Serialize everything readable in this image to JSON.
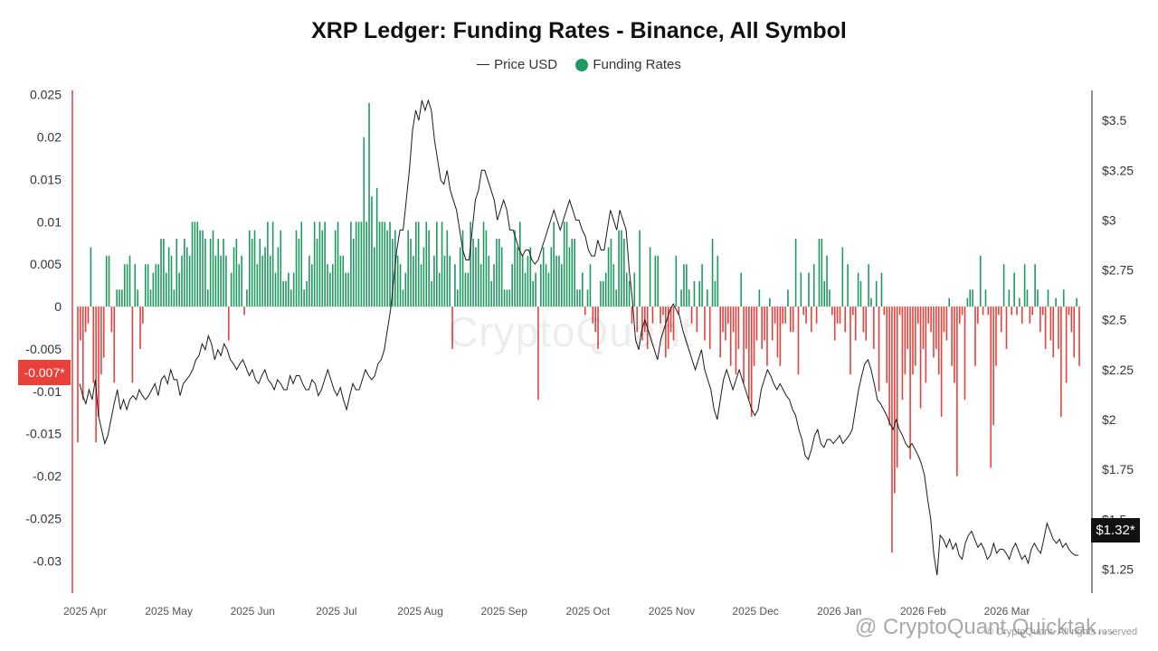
{
  "colors": {
    "positive": "#1e9960",
    "negative": "#e8413b",
    "price": "#1a1a1a",
    "axis": "#e8413b"
  },
  "watermark": "CryptoQuant",
  "credit": "© CryptoQuant. All rights reserved",
  "repost": "@ CryptoQuant Quicktak...",
  "chart_data": {
    "type": "bar",
    "title": "XRP Ledger: Funding Rates - Binance, All Symbol",
    "legend": [
      {
        "label": "Price USD",
        "kind": "line"
      },
      {
        "label": "Funding Rates",
        "kind": "dot"
      }
    ],
    "x_ticks": [
      "2025 Apr",
      "2025 May",
      "2025 Jun",
      "2025 Jul",
      "2025 Aug",
      "2025 Sep",
      "2025 Oct",
      "2025 Nov",
      "2025 Dec",
      "2026 Jan",
      "2026 Feb",
      "2026 Mar"
    ],
    "y_left": {
      "ticks": [
        0.025,
        0.02,
        0.015,
        0.01,
        0.005,
        0,
        -0.005,
        -0.01,
        -0.015,
        -0.02,
        -0.025,
        -0.03
      ],
      "tick_labels": [
        "0.025",
        "0.02",
        "0.015",
        "0.01",
        "0.005",
        "0",
        "-0.005",
        "-0.01",
        "-0.015",
        "-0.02",
        "-0.025",
        "-0.03"
      ],
      "range": [
        -0.0338,
        0.0255
      ]
    },
    "y_right": {
      "ticks": [
        3.5,
        3.25,
        3,
        2.75,
        2.5,
        2.25,
        2,
        1.75,
        1.5,
        1.25
      ],
      "tick_labels": [
        "$3.5",
        "$3.25",
        "$3",
        "$2.75",
        "$2.5",
        "$2.25",
        "$2",
        "$1.75",
        "$1.5",
        "$1.25"
      ],
      "range": [
        1.13,
        3.65
      ]
    },
    "current_funding_label": "-0.007*",
    "current_price_label": "$1.32*",
    "funding_rates": [
      -0.016,
      -0.004,
      -0.011,
      -0.003,
      -0.002,
      0.007,
      -0.009,
      -0.016,
      -0.013,
      -0.008,
      -0.006,
      0.006,
      0.006,
      -0.003,
      -0.009,
      0.002,
      0.002,
      0.002,
      0.005,
      0.005,
      0.006,
      -0.009,
      0.005,
      0.002,
      -0.005,
      -0.002,
      0.005,
      0.005,
      0.002,
      0.004,
      0.005,
      0.005,
      0.008,
      0.008,
      0.004,
      0.007,
      0.006,
      0.002,
      0.008,
      0.004,
      0.006,
      0.008,
      0.007,
      0.006,
      0.01,
      0.01,
      0.01,
      0.009,
      0.009,
      0.008,
      0.002,
      0.008,
      0.009,
      0.006,
      0.008,
      0.006,
      0.008,
      0.006,
      -0.004,
      0.004,
      0.007,
      0.008,
      0.005,
      0.006,
      -0.001,
      0.002,
      0.009,
      0.008,
      0.009,
      0.005,
      0.008,
      0.006,
      0.007,
      0.01,
      0.006,
      0.01,
      0.004,
      0.007,
      0.009,
      0.003,
      0.003,
      0.004,
      0.002,
      0.004,
      0.009,
      0.008,
      0.01,
      0.002,
      0.003,
      0.006,
      0.005,
      0.01,
      0.008,
      0.01,
      0.009,
      0.01,
      0.005,
      0.004,
      0.005,
      0.009,
      0.01,
      0.006,
      0.006,
      0.004,
      0.004,
      0.01,
      0.008,
      0.01,
      0.01,
      0.01,
      0.02,
      0.01,
      0.024,
      0.013,
      0.007,
      0.014,
      0.01,
      0.01,
      0.01,
      0.009,
      0.01,
      0.008,
      0.009,
      0.006,
      0.005,
      0.002,
      0.004,
      0.009,
      0.008,
      0.006,
      0.01,
      0.01,
      0.005,
      0.007,
      0.01,
      0.009,
      0.003,
      0.006,
      0.01,
      0.004,
      0.01,
      0.006,
      0.009,
      0.006,
      -0.005,
      0.005,
      0.002,
      0.007,
      0.009,
      0.004,
      0.004,
      0.01,
      0.008,
      0.007,
      0.008,
      0.005,
      0.01,
      0.009,
      0.006,
      0.003,
      0.005,
      0.008,
      0.008,
      0.007,
      0.002,
      0.002,
      0.002,
      0.005,
      0.009,
      0.007,
      0.01,
      0.006,
      0.004,
      0.006,
      0.007,
      0.003,
      0.004,
      -0.011,
      0.005,
      0.007,
      0.005,
      0.004,
      0.007,
      0.01,
      0.006,
      0.006,
      0.005,
      0.01,
      0.01,
      0.007,
      0.008,
      0.008,
      0.002,
      0.002,
      0.004,
      -0.001,
      0.002,
      0.005,
      -0.002,
      -0.003,
      -0.005,
      0.003,
      0.003,
      0.004,
      0.007,
      0.008,
      0.005,
      0.002,
      0.009,
      0.009,
      0.008,
      0.004,
      0.003,
      -0.002,
      0.004,
      -0.003,
      0.009,
      -0.004,
      -0.003,
      -0.005,
      0.007,
      -0.002,
      0.006,
      0.006,
      -0.002,
      -0.001,
      -0.006,
      -0.005,
      -0.003,
      -0.004,
      0.006,
      -0.001,
      0.002,
      0.005,
      0.005,
      0.002,
      -0.002,
      0.003,
      -0.003,
      0.003,
      0.005,
      -0.004,
      0.002,
      -0.005,
      0.008,
      0.003,
      0.006,
      -0.006,
      -0.003,
      -0.004,
      -0.002,
      -0.007,
      -0.003,
      -0.008,
      -0.005,
      0.004,
      -0.009,
      -0.005,
      -0.011,
      -0.013,
      -0.007,
      -0.004,
      0.002,
      -0.005,
      -0.004,
      -0.007,
      0.001,
      -0.004,
      -0.002,
      -0.006,
      -0.007,
      -0.002,
      -0.002,
      0.002,
      -0.003,
      -0.003,
      0.008,
      -0.008,
      0.004,
      -0.001,
      -0.002,
      0.004,
      -0.003,
      0.005,
      -0.002,
      0.008,
      0.008,
      0.003,
      0.006,
      0.002,
      -0.001,
      -0.004,
      -0.002,
      -0.002,
      0.007,
      -0.003,
      0.005,
      -0.008,
      -0.001,
      -0.004,
      0.004,
      0.003,
      -0.003,
      -0.004,
      0.005,
      0.001,
      -0.005,
      0.003,
      -0.01,
      0.004,
      -0.001,
      -0.009,
      -0.014,
      -0.029,
      -0.022,
      -0.019,
      -0.001,
      -0.011,
      -0.008,
      -0.005,
      -0.018,
      -0.008,
      -0.007,
      -0.002,
      -0.012,
      -0.005,
      -0.009,
      -0.002,
      -0.003,
      -0.006,
      -0.005,
      -0.008,
      -0.013,
      -0.003,
      -0.004,
      0.001,
      -0.007,
      -0.009,
      -0.02,
      -0.002,
      -0.001,
      -0.011,
      0.001,
      0.002,
      0.002,
      -0.007,
      -0.002,
      0.006,
      -0.001,
      0.002,
      -0.001,
      -0.019,
      -0.014,
      -0.007,
      -0.001,
      -0.003,
      0.005,
      -0.005,
      0.002,
      -0.001,
      0.004,
      -0.001,
      0.001,
      -0.002,
      0.005,
      0.002,
      -0.002,
      -0.001,
      0.005,
      0.002,
      -0.003,
      -0.001,
      -0.005,
      0.002,
      -0.004,
      -0.006,
      0.001,
      -0.005,
      -0.013,
      0.002,
      -0.009,
      -0.001,
      -0.003,
      -0.006,
      0.001,
      -0.007
    ],
    "price_usd": [
      2.18,
      2.12,
      2.08,
      2.15,
      2.1,
      2.2,
      2.02,
      1.95,
      1.88,
      1.92,
      2.0,
      2.08,
      2.15,
      2.05,
      2.1,
      2.05,
      2.1,
      2.12,
      2.1,
      2.15,
      2.12,
      2.1,
      2.12,
      2.15,
      2.18,
      2.12,
      2.2,
      2.22,
      2.18,
      2.25,
      2.2,
      2.2,
      2.12,
      2.18,
      2.2,
      2.22,
      2.25,
      2.3,
      2.32,
      2.38,
      2.35,
      2.42,
      2.38,
      2.3,
      2.35,
      2.32,
      2.38,
      2.35,
      2.3,
      2.28,
      2.25,
      2.28,
      2.3,
      2.26,
      2.22,
      2.25,
      2.2,
      2.18,
      2.22,
      2.25,
      2.2,
      2.18,
      2.15,
      2.2,
      2.18,
      2.15,
      2.15,
      2.22,
      2.18,
      2.22,
      2.22,
      2.18,
      2.15,
      2.15,
      2.2,
      2.18,
      2.12,
      2.15,
      2.2,
      2.25,
      2.2,
      2.15,
      2.12,
      2.16,
      2.1,
      2.05,
      2.12,
      2.18,
      2.15,
      2.15,
      2.2,
      2.25,
      2.22,
      2.2,
      2.22,
      2.28,
      2.3,
      2.35,
      2.45,
      2.55,
      2.7,
      2.85,
      2.95,
      2.95,
      3.1,
      3.25,
      3.45,
      3.55,
      3.5,
      3.6,
      3.55,
      3.6,
      3.55,
      3.4,
      3.3,
      3.2,
      3.18,
      3.25,
      3.15,
      3.1,
      3.05,
      2.95,
      2.85,
      2.8,
      2.8,
      2.95,
      3.1,
      3.15,
      3.25,
      3.25,
      3.2,
      3.15,
      3.1,
      3.0,
      3.05,
      3.1,
      3.05,
      2.95,
      2.95,
      2.9,
      2.85,
      2.82,
      2.85,
      2.85,
      2.8,
      2.78,
      2.8,
      2.85,
      2.9,
      2.95,
      3.0,
      3.05,
      3.0,
      2.95,
      3.0,
      3.05,
      3.1,
      3.05,
      3.0,
      3.0,
      2.95,
      2.92,
      2.85,
      2.82,
      2.82,
      2.9,
      2.85,
      2.85,
      2.95,
      3.05,
      3.0,
      2.95,
      3.05,
      3.0,
      2.95,
      2.75,
      2.6,
      2.4,
      2.35,
      2.45,
      2.5,
      2.45,
      2.4,
      2.35,
      2.3,
      2.4,
      2.45,
      2.5,
      2.55,
      2.58,
      2.55,
      2.52,
      2.45,
      2.4,
      2.35,
      2.3,
      2.25,
      2.3,
      2.35,
      2.25,
      2.2,
      2.15,
      2.05,
      2.0,
      2.1,
      2.2,
      2.25,
      2.2,
      2.15,
      2.2,
      2.25,
      2.2,
      2.15,
      2.1,
      2.05,
      2.02,
      2.05,
      2.15,
      2.2,
      2.25,
      2.22,
      2.18,
      2.15,
      2.18,
      2.15,
      2.12,
      2.1,
      2.05,
      2.02,
      1.95,
      1.9,
      1.82,
      1.8,
      1.85,
      1.92,
      1.95,
      1.88,
      1.86,
      1.9,
      1.9,
      1.88,
      1.9,
      1.92,
      1.88,
      1.9,
      1.92,
      1.95,
      2.05,
      2.15,
      2.22,
      2.28,
      2.3,
      2.25,
      2.18,
      2.1,
      2.08,
      2.05,
      2.02,
      1.98,
      1.95,
      2.0,
      1.95,
      1.92,
      1.88,
      1.86,
      1.88,
      1.85,
      1.82,
      1.78,
      1.72,
      1.6,
      1.5,
      1.32,
      1.22,
      1.42,
      1.4,
      1.36,
      1.4,
      1.35,
      1.38,
      1.32,
      1.3,
      1.38,
      1.42,
      1.44,
      1.4,
      1.36,
      1.38,
      1.35,
      1.3,
      1.32,
      1.38,
      1.33,
      1.35,
      1.35,
      1.33,
      1.3,
      1.35,
      1.38,
      1.34,
      1.3,
      1.32,
      1.28,
      1.35,
      1.38,
      1.35,
      1.33,
      1.4,
      1.48,
      1.44,
      1.4,
      1.38,
      1.4,
      1.36,
      1.38,
      1.35,
      1.33,
      1.32,
      1.32
    ]
  }
}
